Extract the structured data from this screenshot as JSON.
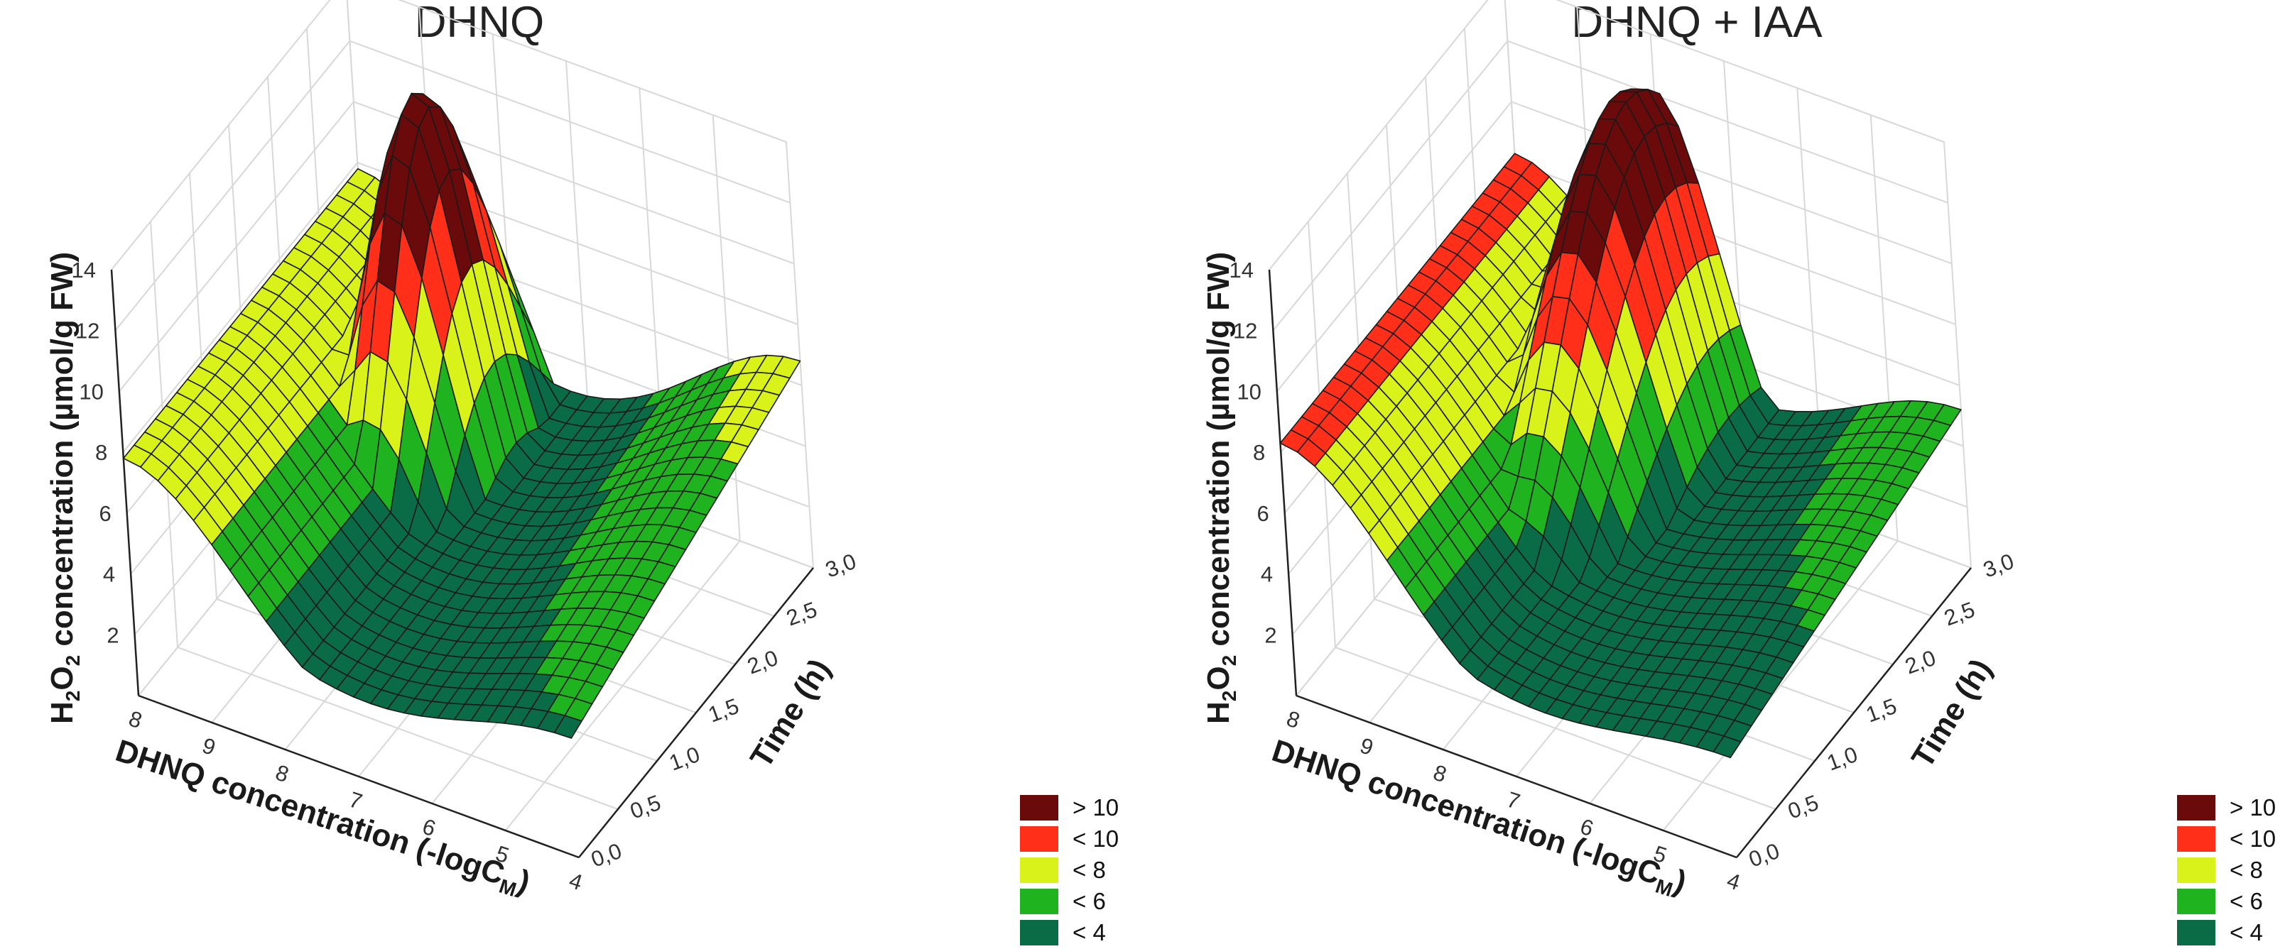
{
  "colors": {
    "gt10": "#6b0a0a",
    "lt10": "#ff2f1a",
    "lt8": "#d9f21a",
    "lt6": "#1fb41f",
    "lt4": "#0a6b47"
  },
  "chart_data": [
    {
      "type": "surface3d",
      "title": "DHNQ",
      "xlabel": "DHNQ concentration (-logC",
      "xlabel_sub": "M",
      "xlabel_close": ")",
      "ylabel": "Time (h)",
      "zlabel_pre": "H",
      "zlabel_sub1": "2",
      "zlabel_mid": "O",
      "zlabel_sub2": "2",
      "zlabel_post": " concentration (µmol/g FW)",
      "x_ticks": [
        "8",
        "9",
        "8",
        "7",
        "6",
        "5",
        "4"
      ],
      "y_ticks": [
        "0,0",
        "0,5",
        "1,0",
        "1,5",
        "2,0",
        "2,5",
        "3,0"
      ],
      "z_ticks": [
        "2",
        "4",
        "6",
        "8",
        "10",
        "12",
        "14"
      ],
      "xlim": [
        10,
        4
      ],
      "ylim": [
        0,
        3
      ],
      "zlim": [
        0,
        14
      ],
      "surface": {
        "peak": 14,
        "peak_x": 8.3,
        "peak_t": 2.3,
        "peak_sx": 0.9,
        "peak_st": 0.85,
        "base_z": 7.0,
        "base_x": 10.0,
        "dip_z": 2.0,
        "dip_x": 5.5,
        "dip_t": 0.0,
        "rise_z": 4.8,
        "rise_x": 4.0,
        "rise_t": 3.0
      },
      "legend": [
        {
          "label": "> 10",
          "color": "gt10"
        },
        {
          "label": "< 10",
          "color": "lt10"
        },
        {
          "label": "< 8",
          "color": "lt8"
        },
        {
          "label": "< 6",
          "color": "lt6"
        },
        {
          "label": "< 4",
          "color": "lt4"
        }
      ]
    },
    {
      "type": "surface3d",
      "title": "DHNQ + IAA",
      "xlabel": "DHNQ concentration (-logC",
      "xlabel_sub": "M",
      "xlabel_close": ")",
      "ylabel": "Time (h)",
      "zlabel_pre": "H",
      "zlabel_sub1": "2",
      "zlabel_mid": "O",
      "zlabel_sub2": "2",
      "zlabel_post": " concentration (µmol/g FW)",
      "x_ticks": [
        "8",
        "9",
        "8",
        "7",
        "6",
        "5",
        "4"
      ],
      "y_ticks": [
        "0,0",
        "0,5",
        "1,0",
        "1,5",
        "2,0",
        "2,5",
        "3,0"
      ],
      "z_ticks": [
        "2",
        "4",
        "6",
        "8",
        "10",
        "12",
        "14"
      ],
      "xlim": [
        10,
        4
      ],
      "ylim": [
        0,
        3
      ],
      "zlim": [
        0,
        14
      ],
      "surface": {
        "peak": 13.2,
        "peak_x": 8.0,
        "peak_t": 2.6,
        "peak_sx": 1.1,
        "peak_st": 1.4,
        "base_z": 7.5,
        "base_x": 10.0,
        "dip_z": 2.0,
        "dip_x": 5.5,
        "dip_t": 0.0,
        "rise_z": 3.2,
        "rise_x": 4.0,
        "rise_t": 3.0
      },
      "legend": [
        {
          "label": "> 10",
          "color": "gt10"
        },
        {
          "label": "< 10",
          "color": "lt10"
        },
        {
          "label": "< 8",
          "color": "lt8"
        },
        {
          "label": "< 6",
          "color": "lt6"
        },
        {
          "label": "< 4",
          "color": "lt4"
        }
      ]
    }
  ]
}
